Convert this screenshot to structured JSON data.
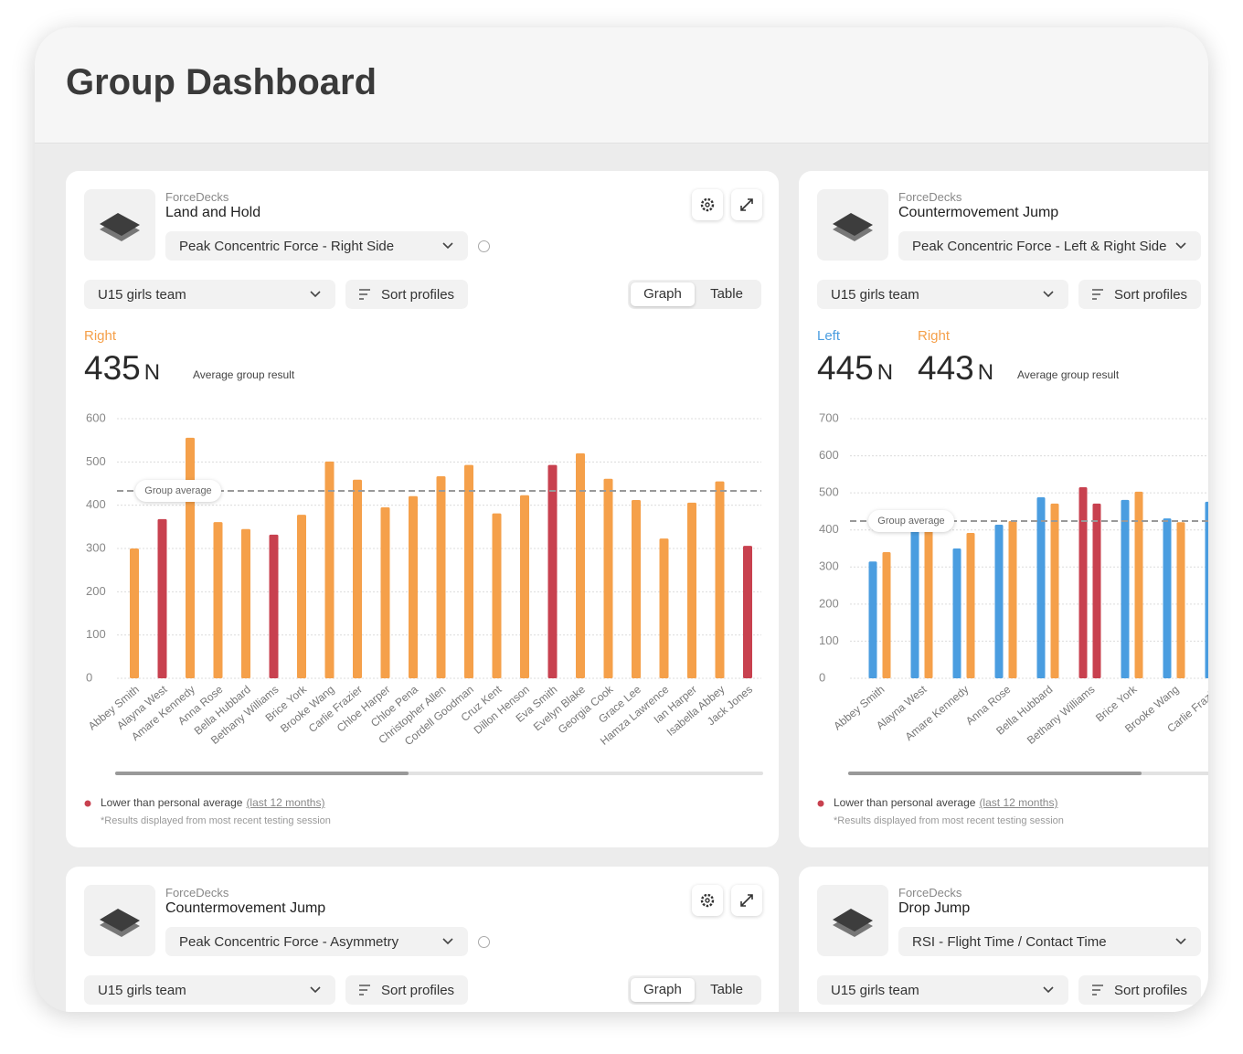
{
  "header": {
    "title": "Group Dashboard"
  },
  "cards": [
    {
      "source": "ForceDecks",
      "test": "Land and Hold",
      "metric": "Peak Concentric Force - Right Side",
      "group": "U15 girls team",
      "sort": "Sort profiles",
      "views": [
        "Graph",
        "Table"
      ],
      "result_caption": "Average group result",
      "legend": "Lower than personal average",
      "legend_link": "(last 12 months)",
      "footnote": "*Results displayed from most recent testing session"
    },
    {
      "source": "ForceDecks",
      "test": "Countermovement Jump",
      "metric": "Peak Concentric Force - Left & Right Side",
      "group": "U15 girls team",
      "sort": "Sort profiles",
      "result_caption": "Average group result",
      "legend": "Lower than personal average",
      "legend_link": "(last 12 months)",
      "footnote": "*Results displayed from most recent testing session"
    },
    {
      "source": "ForceDecks",
      "test": "Countermovement Jump",
      "metric": "Peak Concentric Force - Asymmetry",
      "group": "U15 girls team",
      "sort": "Sort profiles",
      "views": [
        "Graph",
        "Table"
      ]
    },
    {
      "source": "ForceDecks",
      "test": "Drop Jump",
      "metric": "RSI - Flight Time / Contact Time",
      "group": "U15 girls team",
      "sort": "Sort profiles"
    }
  ],
  "chart_data": [
    {
      "type": "bar",
      "unit": "N",
      "annotation": "Group average",
      "average_line": 433,
      "lower_color": "#c8414f",
      "categories": [
        "Abbey Smith",
        "Alayna West",
        "Amare Kennedy",
        "Anna Rose",
        "Bella Hubbard",
        "Bethany Williams",
        "Brice York",
        "Brooke Wang",
        "Carlie Frazier",
        "Chloe Harper",
        "Chloe Pena",
        "Christopher Allen",
        "Cordell Goodman",
        "Cruz Kent",
        "Dillon Henson",
        "Eva Smith",
        "Evelyn Blake",
        "Georgia Cook",
        "Grace Lee",
        "Hamza Lawrence",
        "Ian Harper",
        "Isabella Abbey",
        "Jack Jones"
      ],
      "series": [
        {
          "name": "Right",
          "color": "#f5a04a",
          "average": 435,
          "values": [
            300,
            368,
            556,
            361,
            345,
            332,
            378,
            501,
            459,
            395,
            421,
            467,
            493,
            381,
            423,
            493,
            520,
            461,
            412,
            323,
            406,
            455,
            306
          ],
          "lower_than_average": [
            false,
            true,
            false,
            false,
            false,
            true,
            false,
            false,
            false,
            false,
            false,
            false,
            false,
            false,
            false,
            true,
            false,
            false,
            false,
            false,
            false,
            false,
            true
          ]
        }
      ],
      "ylim": [
        0,
        600
      ],
      "yticks": [
        0,
        100,
        200,
        300,
        400,
        500,
        600
      ],
      "grid": true
    },
    {
      "type": "grouped_bar",
      "unit": "N",
      "annotation": "Group average",
      "average_line": 424,
      "lower_color": "#c8414f",
      "categories": [
        "Abbey Smith",
        "Alayna West",
        "Amare Kennedy",
        "Anna Rose",
        "Bella Hubbard",
        "Bethany Williams",
        "Brice York",
        "Brooke Wang",
        "Carlie Frazier"
      ],
      "series": [
        {
          "name": "Left",
          "color": "#4a9de0",
          "average": 445,
          "values": [
            315,
            399,
            350,
            414,
            488,
            515,
            481,
            431,
            476
          ],
          "lower_than_average": [
            false,
            false,
            false,
            false,
            false,
            true,
            false,
            false,
            false
          ]
        },
        {
          "name": "Right",
          "color": "#f5a04a",
          "average": 443,
          "values": [
            340,
            399,
            392,
            424,
            471,
            471,
            503,
            421,
            null
          ],
          "lower_than_average": [
            false,
            false,
            false,
            false,
            false,
            true,
            false,
            false,
            false
          ]
        }
      ],
      "ylim": [
        0,
        700
      ],
      "yticks": [
        0,
        100,
        200,
        300,
        400,
        500,
        600,
        700
      ],
      "grid": true
    }
  ]
}
